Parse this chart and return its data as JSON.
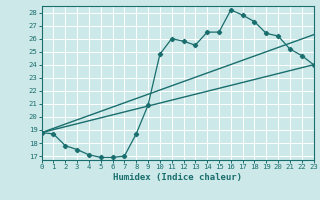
{
  "xlabel": "Humidex (Indice chaleur)",
  "xlim": [
    0,
    23
  ],
  "ylim": [
    16.7,
    28.5
  ],
  "xticks": [
    0,
    1,
    2,
    3,
    4,
    5,
    6,
    7,
    8,
    9,
    10,
    11,
    12,
    13,
    14,
    15,
    16,
    17,
    18,
    19,
    20,
    21,
    22,
    23
  ],
  "yticks": [
    17,
    18,
    19,
    20,
    21,
    22,
    23,
    24,
    25,
    26,
    27,
    28
  ],
  "bg_color": "#cce8e8",
  "line_color": "#1a6e6e",
  "grid_color": "#b0d0d0",
  "line1_x": [
    0,
    1,
    2,
    3,
    4,
    5,
    6,
    7,
    8,
    9,
    10,
    11,
    12,
    13,
    14,
    15,
    16,
    17,
    18,
    19,
    20,
    21,
    22,
    23
  ],
  "line1_y": [
    18.8,
    18.7,
    17.8,
    17.5,
    17.1,
    16.9,
    16.9,
    17.0,
    18.7,
    20.9,
    24.8,
    26.0,
    25.8,
    25.5,
    26.5,
    26.5,
    28.2,
    27.8,
    27.3,
    26.4,
    26.2,
    25.2,
    24.7,
    24.0
  ],
  "line2_x": [
    0,
    23
  ],
  "line2_y": [
    18.8,
    24.0
  ],
  "line3_x": [
    0,
    23
  ],
  "line3_y": [
    18.8,
    26.3
  ]
}
